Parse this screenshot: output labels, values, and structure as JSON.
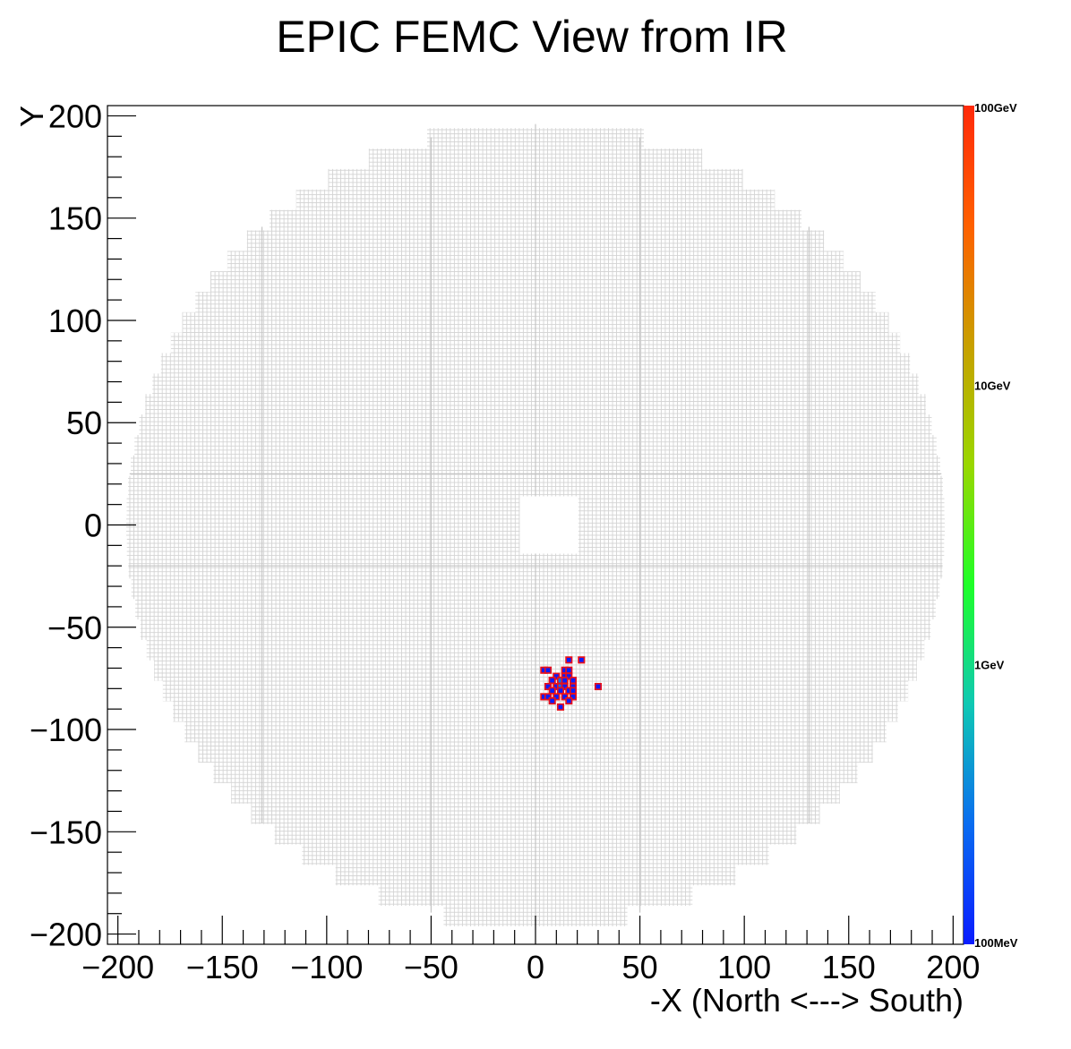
{
  "chart_data": {
    "type": "heatmap",
    "title": "EPIC FEMC View from IR",
    "xlabel": "-X (North <---> South)",
    "ylabel": "Y",
    "xlim": [
      -205,
      205
    ],
    "ylim": [
      -205,
      205
    ],
    "x_ticks": [
      -200,
      -150,
      -100,
      -50,
      0,
      50,
      100,
      150,
      200
    ],
    "y_ticks": [
      -200,
      -150,
      -100,
      -50,
      0,
      50,
      100,
      150,
      200
    ],
    "x_tick_labels": [
      "−200",
      "−150",
      "−100",
      "−50",
      "0",
      "50",
      "100",
      "150",
      "200"
    ],
    "y_tick_labels": [
      "−200",
      "−150",
      "−100",
      "−50",
      "0",
      "50",
      "100",
      "150",
      "200"
    ],
    "grid": false,
    "detector_radius": 196,
    "beam_hole": {
      "x": [
        -7.5,
        20.5
      ],
      "y": [
        -14,
        14
      ]
    },
    "colorbar": {
      "scale": "log",
      "range_gev": [
        0.1,
        100
      ],
      "tick_values_gev": [
        0.1,
        1,
        10,
        100
      ],
      "labels": [
        "100MeV",
        "1GeV",
        "10GeV",
        "100GeV"
      ],
      "colors": [
        "#0a1cff",
        "#0a6cf0",
        "#0fc8b4",
        "#1eff28",
        "#9ad700",
        "#c8a000",
        "#ff6000",
        "#ff2a0a"
      ]
    },
    "hits": [
      {
        "x": 16,
        "y": -66,
        "e": 0.1
      },
      {
        "x": 22,
        "y": -66,
        "e": 0.1
      },
      {
        "x": 4,
        "y": -71,
        "e": 0.1
      },
      {
        "x": 6,
        "y": -71,
        "e": 0.1
      },
      {
        "x": 14,
        "y": -71,
        "e": 0.1
      },
      {
        "x": 16,
        "y": -71,
        "e": 0.1
      },
      {
        "x": 10,
        "y": -74,
        "e": 0.1
      },
      {
        "x": 14,
        "y": -74,
        "e": 0.1
      },
      {
        "x": 16,
        "y": -74,
        "e": 0.1
      },
      {
        "x": 8,
        "y": -76,
        "e": 0.1
      },
      {
        "x": 12,
        "y": -76,
        "e": 0.3
      },
      {
        "x": 14,
        "y": -76,
        "e": 0.1
      },
      {
        "x": 18,
        "y": -76,
        "e": 0.1
      },
      {
        "x": 6,
        "y": -79,
        "e": 0.1
      },
      {
        "x": 10,
        "y": -79,
        "e": 0.1
      },
      {
        "x": 12,
        "y": -79,
        "e": 0.3
      },
      {
        "x": 14,
        "y": -79,
        "e": 0.1
      },
      {
        "x": 18,
        "y": -79,
        "e": 0.1
      },
      {
        "x": 30,
        "y": -79,
        "e": 0.1
      },
      {
        "x": 8,
        "y": -81,
        "e": 0.1
      },
      {
        "x": 12,
        "y": -81,
        "e": 0.1
      },
      {
        "x": 16,
        "y": -81,
        "e": 0.1
      },
      {
        "x": 18,
        "y": -81,
        "e": 0.1
      },
      {
        "x": 4,
        "y": -84,
        "e": 0.1
      },
      {
        "x": 6,
        "y": -84,
        "e": 0.1
      },
      {
        "x": 10,
        "y": -84,
        "e": 0.1
      },
      {
        "x": 14,
        "y": -84,
        "e": 0.1
      },
      {
        "x": 18,
        "y": -84,
        "e": 0.1
      },
      {
        "x": 8,
        "y": -86,
        "e": 0.1
      },
      {
        "x": 16,
        "y": -86,
        "e": 0.1
      },
      {
        "x": 12,
        "y": -89,
        "e": 0.1
      }
    ]
  }
}
